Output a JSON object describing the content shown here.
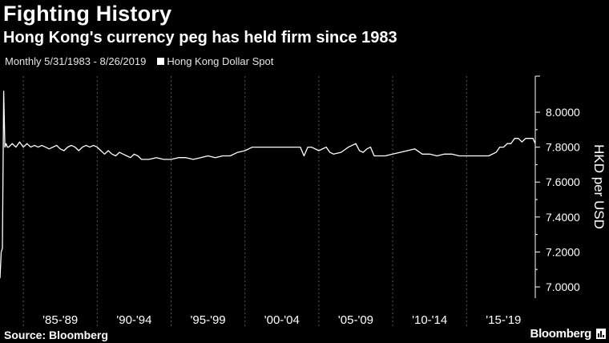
{
  "header": {
    "title": "Fighting History",
    "subtitle": "Hong Kong's currency peg has held firm since 1983",
    "period": "Monthly 5/31/1983 - 8/26/2019",
    "legend_label": "Hong Kong Dollar Spot"
  },
  "footer": {
    "source": "Source: Bloomberg",
    "brand": "Bloomberg"
  },
  "colors": {
    "background": "#000000",
    "line": "#ffffff",
    "grid": "#555555"
  },
  "chart_data": {
    "type": "line",
    "title": "Fighting History",
    "subtitle": "Hong Kong's currency peg has held firm since 1983",
    "ylabel": "HKD per USD",
    "ylim": [
      7.0,
      8.0
    ],
    "yticks": [
      "7.0000",
      "7.2000",
      "7.4000",
      "7.6000",
      "7.8000",
      "8.0000"
    ],
    "xlim": [
      1983.42,
      2019.65
    ],
    "xtick_labels": [
      "'85-'89",
      "'90-'94",
      "'95-'99",
      "'00-'04",
      "'05-'09",
      "'10-'14",
      "'15-'19"
    ],
    "x_bands": [
      [
        1985,
        1990
      ],
      [
        1990,
        1995
      ],
      [
        1995,
        2000
      ],
      [
        2000,
        2005
      ],
      [
        2005,
        2010
      ],
      [
        2010,
        2015
      ],
      [
        2015,
        2020
      ]
    ],
    "grid": "vertical-dashed",
    "legend": "top-left",
    "series": [
      {
        "name": "Hong Kong Dollar Spot",
        "x": [
          1983.42,
          1983.5,
          1983.58,
          1983.67,
          1983.75,
          1983.83,
          1983.92,
          1984.0,
          1984.25,
          1984.5,
          1984.75,
          1985.0,
          1985.25,
          1985.5,
          1985.75,
          1986.0,
          1986.25,
          1986.5,
          1986.75,
          1987.0,
          1987.25,
          1987.5,
          1987.75,
          1988.0,
          1988.25,
          1988.5,
          1988.75,
          1989.0,
          1989.25,
          1989.5,
          1989.75,
          1990.0,
          1990.25,
          1990.5,
          1990.75,
          1991.0,
          1991.25,
          1991.5,
          1991.75,
          1992.0,
          1992.25,
          1992.5,
          1992.75,
          1993.0,
          1993.5,
          1994.0,
          1994.5,
          1995.0,
          1995.5,
          1996.0,
          1996.5,
          1997.0,
          1997.5,
          1998.0,
          1998.5,
          1999.0,
          1999.5,
          2000.0,
          2000.5,
          2001.0,
          2002.0,
          2003.0,
          2003.75,
          2004.0,
          2004.25,
          2004.5,
          2005.0,
          2005.5,
          2005.75,
          2006.0,
          2006.5,
          2007.0,
          2007.5,
          2007.75,
          2008.0,
          2008.25,
          2008.5,
          2008.75,
          2009.0,
          2009.5,
          2010.0,
          2010.5,
          2011.0,
          2011.5,
          2012.0,
          2012.5,
          2013.0,
          2013.5,
          2014.0,
          2014.5,
          2015.0,
          2015.5,
          2016.0,
          2016.5,
          2017.0,
          2017.25,
          2017.5,
          2017.75,
          2018.0,
          2018.25,
          2018.5,
          2018.75,
          2019.0,
          2019.25,
          2019.5,
          2019.65
        ],
        "y": [
          7.05,
          7.2,
          7.22,
          8.12,
          7.8,
          7.82,
          7.8,
          7.8,
          7.82,
          7.8,
          7.83,
          7.8,
          7.82,
          7.8,
          7.81,
          7.8,
          7.81,
          7.8,
          7.79,
          7.8,
          7.81,
          7.79,
          7.78,
          7.8,
          7.81,
          7.8,
          7.78,
          7.8,
          7.81,
          7.8,
          7.81,
          7.8,
          7.78,
          7.76,
          7.78,
          7.76,
          7.75,
          7.77,
          7.76,
          7.75,
          7.74,
          7.76,
          7.75,
          7.73,
          7.73,
          7.74,
          7.73,
          7.73,
          7.74,
          7.74,
          7.73,
          7.74,
          7.75,
          7.74,
          7.75,
          7.75,
          7.77,
          7.78,
          7.8,
          7.8,
          7.8,
          7.8,
          7.8,
          7.75,
          7.8,
          7.8,
          7.78,
          7.8,
          7.77,
          7.76,
          7.77,
          7.8,
          7.82,
          7.78,
          7.77,
          7.79,
          7.8,
          7.75,
          7.75,
          7.75,
          7.76,
          7.77,
          7.78,
          7.79,
          7.76,
          7.76,
          7.75,
          7.76,
          7.76,
          7.75,
          7.75,
          7.75,
          7.75,
          7.75,
          7.77,
          7.8,
          7.8,
          7.82,
          7.82,
          7.85,
          7.85,
          7.83,
          7.85,
          7.85,
          7.85,
          7.82
        ]
      }
    ]
  }
}
